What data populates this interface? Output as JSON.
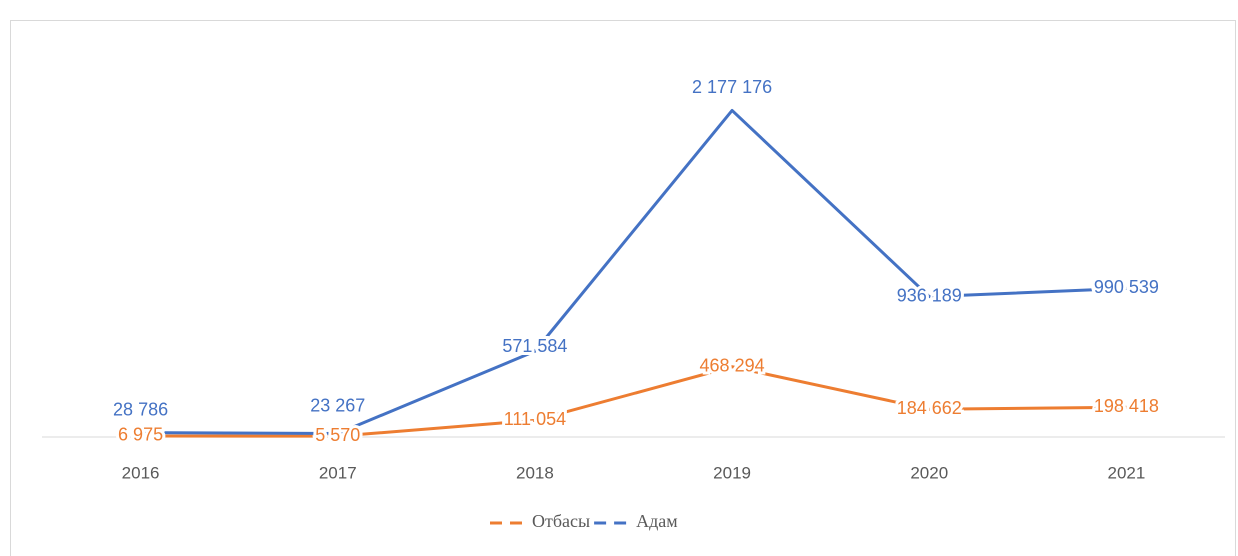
{
  "chart_data": {
    "type": "line",
    "categories": [
      "2016",
      "2017",
      "2018",
      "2019",
      "2020",
      "2021"
    ],
    "series": [
      {
        "name": "Отбасы",
        "color": "#ed7d31",
        "values": [
          6975,
          5570,
          111054,
          468294,
          184662,
          198418
        ],
        "value_labels": [
          "6 975",
          "5 570",
          "111 054",
          "468 294",
          "184 662",
          "198 418"
        ]
      },
      {
        "name": "Адам",
        "color": "#4472c4",
        "values": [
          28786,
          23267,
          571584,
          2177176,
          936189,
          990539
        ],
        "value_labels": [
          "28 786",
          "23 267",
          "571 584",
          "2 177 176",
          "936 189",
          "990 539"
        ]
      }
    ],
    "ylim": [
      0,
      2500000
    ],
    "legend": "bottom"
  }
}
